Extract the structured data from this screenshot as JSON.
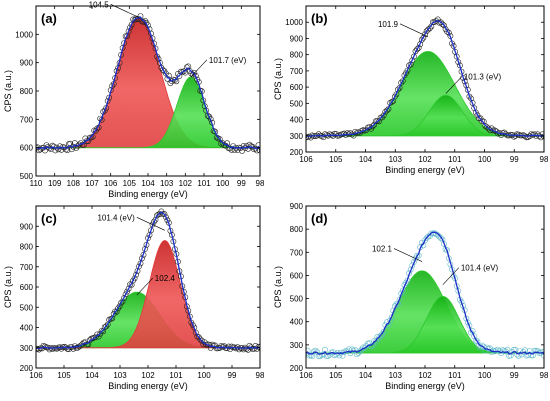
{
  "chart_data": [
    {
      "panel": "(a)",
      "type": "line",
      "xlabel": "Binding energy (eV)",
      "ylabel": "CPS (a.u.)",
      "xlim": [
        110,
        98
      ],
      "ylim": [
        500,
        1100
      ],
      "xticks": [
        110,
        109,
        108,
        107,
        106,
        105,
        104,
        103,
        102,
        101,
        100,
        99,
        98
      ],
      "yticks": [
        500,
        600,
        700,
        800,
        900,
        1000
      ],
      "baseline": 600,
      "peaks": [
        {
          "center": 104.5,
          "amplitude": 460,
          "sigma": 1.15,
          "color": "#e03a3a"
        },
        {
          "center": 101.7,
          "amplitude": 250,
          "sigma": 0.75,
          "color": "#2ec82e"
        }
      ],
      "annotations": [
        {
          "text": "104.5",
          "x": 104.5,
          "y": 1060
        },
        {
          "text": "101.7 (eV)",
          "x": 101.7,
          "y": 850
        }
      ],
      "noise": 12
    },
    {
      "panel": "(b)",
      "type": "line",
      "xlabel": "Binding energy (eV)",
      "ylabel": "CPS (a.u.)",
      "xlim": [
        106,
        98
      ],
      "ylim": [
        200,
        1100
      ],
      "xticks": [
        106,
        105,
        104,
        103,
        102,
        101,
        100,
        99,
        98
      ],
      "yticks": [
        200,
        300,
        400,
        500,
        600,
        700,
        800,
        900,
        1000
      ],
      "baseline": 300,
      "peaks": [
        {
          "center": 101.9,
          "amplitude": 520,
          "sigma": 0.9,
          "color": "#2ec82e"
        },
        {
          "center": 101.3,
          "amplitude": 250,
          "sigma": 0.55,
          "color": "#2ec82e"
        }
      ],
      "annotations": [
        {
          "text": "101.9",
          "x": 101.9,
          "y": 910
        },
        {
          "text": "101.3 (eV)",
          "x": 101.3,
          "y": 560
        }
      ],
      "noise": 12
    },
    {
      "panel": "(c)",
      "type": "line",
      "xlabel": "Binding energy (eV)",
      "ylabel": "CPS (a.u.)",
      "xlim": [
        106,
        98
      ],
      "ylim": [
        200,
        1000
      ],
      "xticks": [
        106,
        105,
        104,
        103,
        102,
        101,
        100,
        99,
        98
      ],
      "yticks": [
        200,
        300,
        400,
        500,
        600,
        700,
        800,
        900
      ],
      "baseline": 300,
      "peaks": [
        {
          "center": 102.4,
          "amplitude": 275,
          "sigma": 0.8,
          "color": "#2ec82e"
        },
        {
          "center": 101.4,
          "amplitude": 530,
          "sigma": 0.55,
          "color": "#e03a3a"
        }
      ],
      "annotations": [
        {
          "text": "101.4 (eV)",
          "x": 101.4,
          "y": 880
        },
        {
          "text": "102.4",
          "x": 102.4,
          "y": 560
        }
      ],
      "noise": 10
    },
    {
      "panel": "(d)",
      "type": "line",
      "xlabel": "Binding energy (eV)",
      "ylabel": "CPS (a.u.)",
      "xlim": [
        106,
        98
      ],
      "ylim": [
        200,
        900
      ],
      "xticks": [
        106,
        105,
        104,
        103,
        102,
        101,
        100,
        99,
        98
      ],
      "yticks": [
        200,
        300,
        400,
        500,
        600,
        700,
        800,
        900
      ],
      "baseline": 265,
      "peaks": [
        {
          "center": 102.1,
          "amplitude": 355,
          "sigma": 0.8,
          "color": "#2ec82e"
        },
        {
          "center": 101.4,
          "amplitude": 245,
          "sigma": 0.55,
          "color": "#2ec82e"
        }
      ],
      "annotations": [
        {
          "text": "102.1",
          "x": 102.1,
          "y": 660
        },
        {
          "text": "101.4 (eV)",
          "x": 101.4,
          "y": 560
        }
      ],
      "noise": 14,
      "points_color": "#5fb8c8"
    }
  ]
}
